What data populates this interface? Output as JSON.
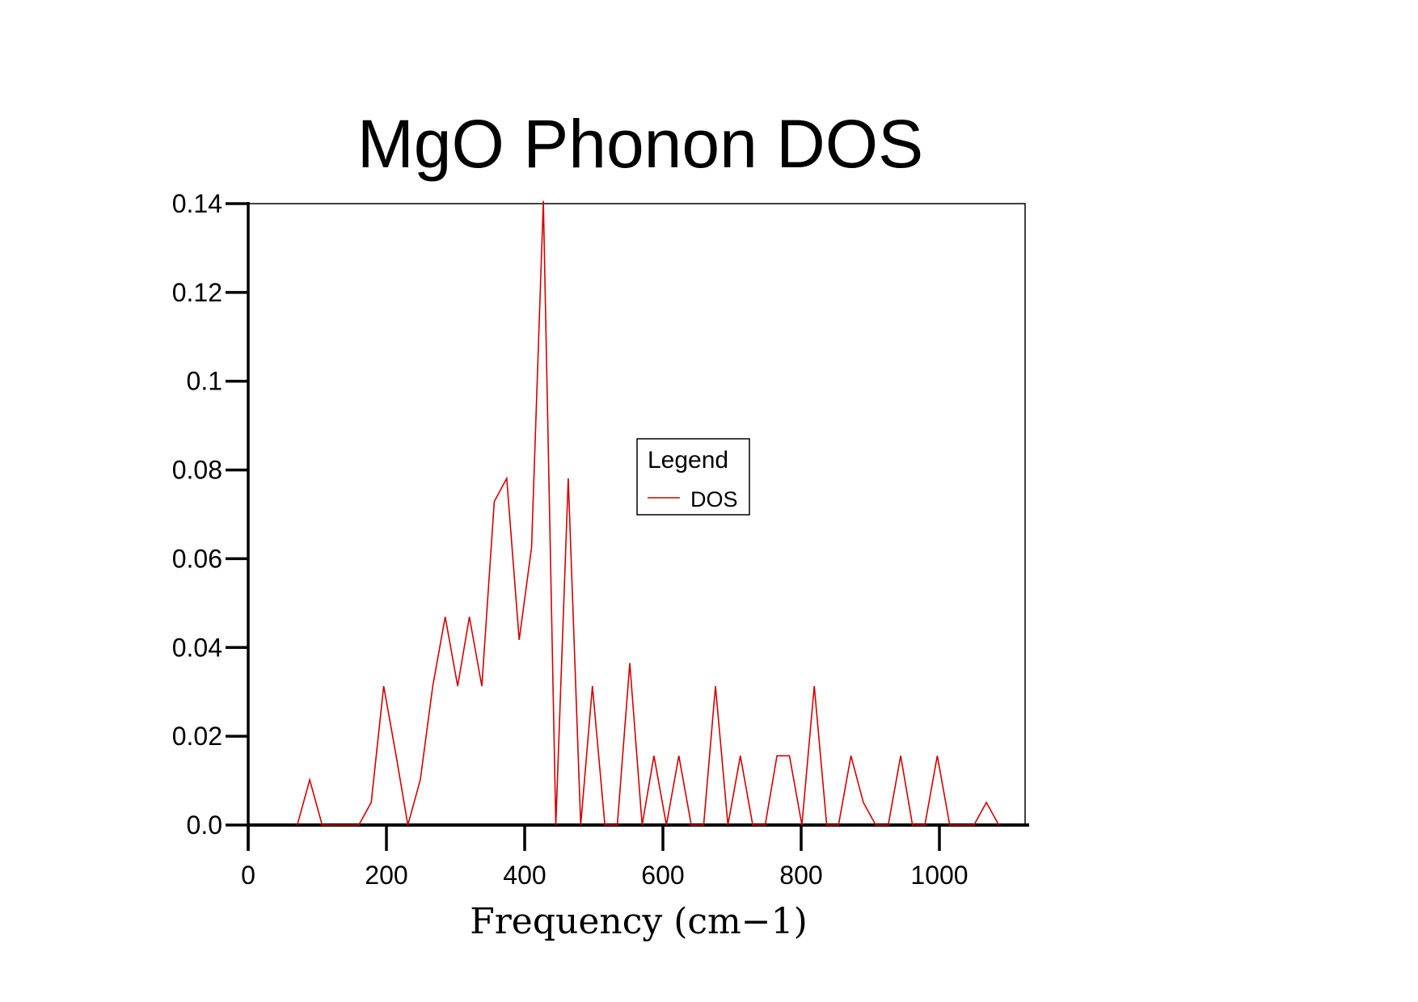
{
  "chart_data": {
    "type": "line",
    "title": "MgO Phonon DOS",
    "xlabel": "Frequency (cm−1)",
    "ylabel": "",
    "xlim": [
      0,
      1140
    ],
    "ylim": [
      0,
      0.14
    ],
    "xticks": [
      0,
      200,
      400,
      600,
      800,
      1000
    ],
    "xtick_labels": [
      "0",
      "200",
      "400",
      "600",
      "800",
      "1000"
    ],
    "yticks": [
      0,
      0.02,
      0.04,
      0.06,
      0.08,
      0.1,
      0.12,
      0.14
    ],
    "ytick_labels": [
      "0.0",
      "0.02",
      "0.04",
      "0.06",
      "0.08",
      "0.1",
      "0.12",
      "0.14"
    ],
    "grid": false,
    "legend": {
      "title": "Legend",
      "placement": "center",
      "entries": [
        "DOS"
      ]
    },
    "series": [
      {
        "name": "DOS",
        "color": "#d40000",
        "x": [
          71,
          89,
          107,
          160,
          178,
          196,
          214,
          231,
          249,
          267,
          285,
          303,
          320,
          338,
          356,
          374,
          392,
          410,
          427,
          445,
          463,
          481,
          498,
          516,
          534,
          552,
          570,
          587,
          605,
          623,
          641,
          659,
          676,
          694,
          712,
          730,
          748,
          765,
          783,
          801,
          819,
          837,
          854,
          872,
          890,
          908,
          926,
          944,
          961,
          979,
          997,
          1015,
          1050,
          1068,
          1086
        ],
        "values": [
          0,
          0.0102,
          0,
          0,
          0.0051,
          0.0313,
          0.0156,
          0,
          0.0102,
          0.0313,
          0.0469,
          0.0313,
          0.0469,
          0.0313,
          0.0729,
          0.0781,
          0.0417,
          0.0625,
          0.1406,
          0,
          0.0781,
          0,
          0.0313,
          0,
          0,
          0.0365,
          0,
          0.0156,
          0,
          0.0156,
          0,
          0,
          0.0313,
          0,
          0.0156,
          0,
          0,
          0.0156,
          0.0156,
          0,
          0.0313,
          0,
          0,
          0.0156,
          0.0051,
          0,
          0,
          0.0156,
          0,
          0,
          0.0156,
          0,
          0,
          0.0051,
          0
        ]
      }
    ]
  }
}
